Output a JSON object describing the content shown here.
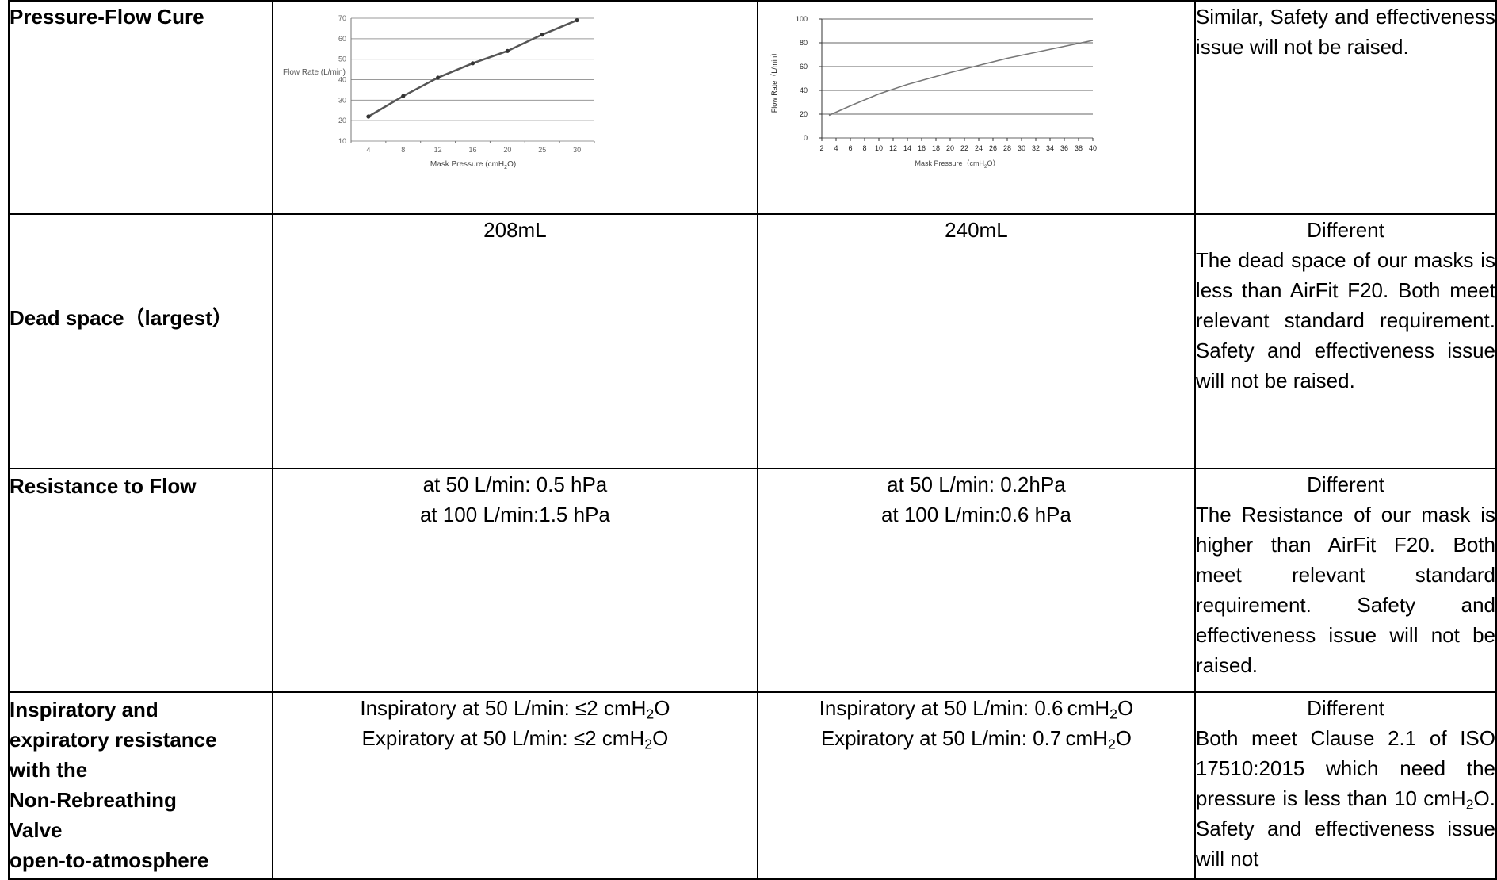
{
  "rows": [
    {
      "label": "Pressure-Flow Cure",
      "note": [
        "Similar, Safety and effectiveness issue will not be raised."
      ]
    },
    {
      "label": "Dead space（largest）",
      "val_a": [
        "208mL"
      ],
      "val_b": [
        "240mL"
      ],
      "note_lead": "Different",
      "note": [
        "The dead space of our masks is less than AirFit F20. Both meet relevant standard requirement. Safety and effectiveness issue will not be raised."
      ]
    },
    {
      "label": "Resistance to Flow",
      "val_a": [
        "at 50 L/min: 0.5 hPa",
        "at 100 L/min:1.5 hPa"
      ],
      "val_b": [
        "at 50 L/min: 0.2hPa",
        "at 100 L/min:0.6 hPa"
      ],
      "note_lead": "Different",
      "note": [
        "The Resistance of our mask is higher than AirFit F20. Both meet relevant standard requirement. Safety and effectiveness issue will not be raised."
      ]
    },
    {
      "label_lines": [
        "Inspiratory and",
        "expiratory resistance",
        "with the",
        "Non-Rebreathing",
        "Valve",
        "open-to-atmosphere"
      ],
      "val_a": {
        "l1_pre": "Inspiratory at 50 L/min: ≤2 cmH",
        "l1_post": "O",
        "l2_pre": "Expiratory at 50 L/min: ≤2 cmH",
        "l2_post": "O",
        "sub": "2"
      },
      "val_b": {
        "l1_pre": "Inspiratory at 50 L/min: 0.6 cmH",
        "l1_post": "O",
        "l2_pre": "Expiratory at 50 L/min: 0.7 cmH",
        "l2_post": "O",
        "sub": "2"
      },
      "note_lead": "Different",
      "note_pre": "Both meet Clause 2.1 of ISO 17510:2015 which need the pressure is less than 10 cmH",
      "note_sub": "2",
      "note_post": "O. Safety and effectiveness issue will not"
    }
  ],
  "chart_data": [
    {
      "type": "line",
      "title": "",
      "xlabel": "Mask Pressure (cmH2O)",
      "ylabel": "Flow Rate (L/min)",
      "x": [
        4,
        8,
        12,
        16,
        20,
        25,
        30
      ],
      "series": [
        {
          "values": [
            22,
            32,
            41,
            48,
            54,
            62,
            69
          ]
        }
      ],
      "ylim": [
        10,
        70
      ],
      "yticks": [
        10,
        20,
        30,
        40,
        50,
        60,
        70
      ],
      "grid": true,
      "line_color": "#555555"
    },
    {
      "type": "line",
      "title": "",
      "xlabel": "Mask Pressure（cmH2O）",
      "ylabel": "Flow Rate（L/min）",
      "x": [
        3,
        6,
        10,
        14,
        20,
        24,
        28,
        32,
        36,
        40
      ],
      "series": [
        {
          "values": [
            19,
            27,
            37,
            45,
            55,
            61,
            67,
            72,
            77,
            82
          ]
        }
      ],
      "xticks": [
        2,
        4,
        6,
        8,
        10,
        12,
        14,
        16,
        18,
        20,
        22,
        24,
        26,
        28,
        30,
        32,
        34,
        36,
        38,
        40
      ],
      "yticks": [
        0,
        20,
        40,
        60,
        80,
        100
      ],
      "ylim": [
        0,
        100
      ],
      "xlim": [
        2,
        40
      ],
      "grid": true,
      "line_color": "#777777"
    }
  ]
}
